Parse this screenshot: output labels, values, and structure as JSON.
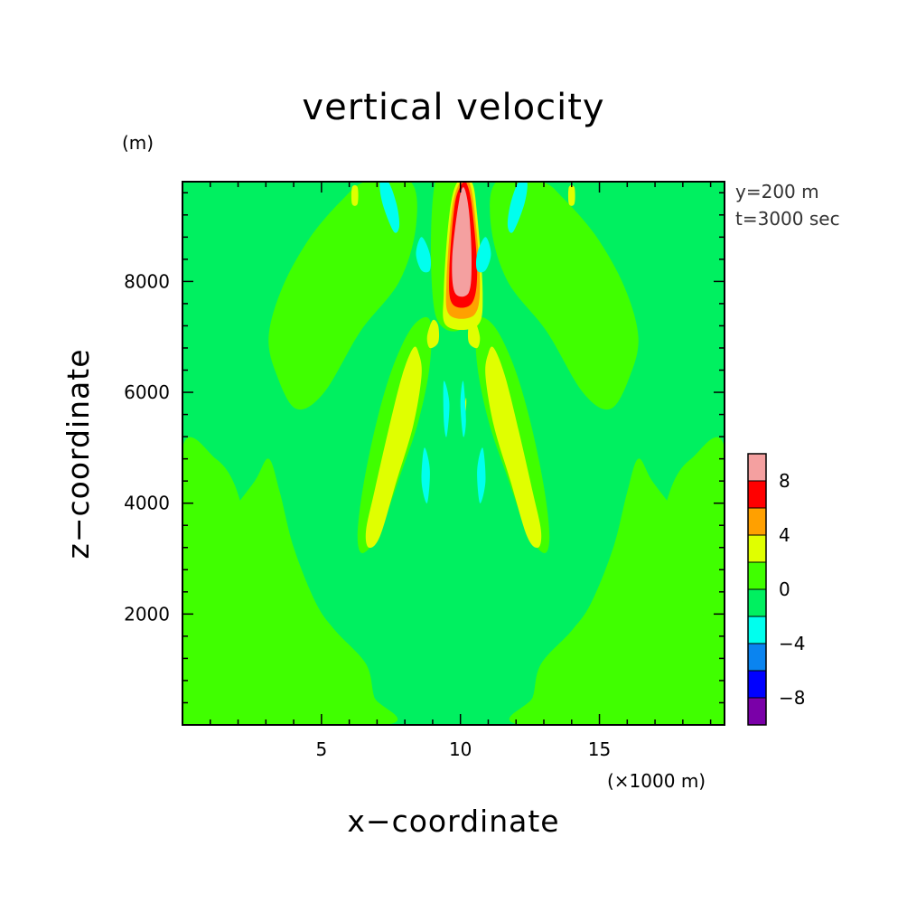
{
  "chart_data": {
    "type": "heatmap",
    "subtype": "filled-contour",
    "title": "vertical velocity",
    "xlabel": "x−coordinate",
    "ylabel": "z−coordinate",
    "x_unit": "(×1000 m)",
    "y_unit": "(m)",
    "annotations": [
      "y=200 m",
      "t=3000 sec"
    ],
    "xlim": [
      0,
      19.5
    ],
    "ylim": [
      0,
      9800
    ],
    "x_ticks": [
      5,
      10,
      15
    ],
    "x_tick_labels": [
      "5",
      "10",
      "15"
    ],
    "y_ticks": [
      2000,
      4000,
      6000,
      8000
    ],
    "y_tick_labels": [
      "2000",
      "4000",
      "6000",
      "8000"
    ],
    "background_level": 0,
    "levels": [
      {
        "range": [
          -10,
          -8
        ],
        "color": "#7a00a8"
      },
      {
        "range": [
          -8,
          -6
        ],
        "color": "#0000ff"
      },
      {
        "range": [
          -6,
          -4
        ],
        "color": "#0a84f0"
      },
      {
        "range": [
          -4,
          -2
        ],
        "color": "#00ffee"
      },
      {
        "range": [
          -2,
          0
        ],
        "color": "#00f060"
      },
      {
        "range": [
          0,
          2
        ],
        "color": "#40ff00"
      },
      {
        "range": [
          2,
          4
        ],
        "color": "#e0ff00"
      },
      {
        "range": [
          4,
          6
        ],
        "color": "#ffa000"
      },
      {
        "range": [
          6,
          8
        ],
        "color": "#ff0000"
      },
      {
        "range": [
          8,
          10
        ],
        "color": "#f4a0a0"
      }
    ],
    "colorbar_labels": [
      {
        "value": 8,
        "label": "8"
      },
      {
        "value": 4,
        "label": "4"
      },
      {
        "value": 0,
        "label": "0"
      },
      {
        "value": -4,
        "label": "−4"
      },
      {
        "value": -8,
        "label": "−8"
      }
    ],
    "features": [
      {
        "name": "left-lower-plume",
        "level": 1,
        "pts": [
          [
            0,
            0
          ],
          [
            0,
            1900
          ],
          [
            0.5,
            2600
          ],
          [
            1.6,
            3700
          ],
          [
            2.6,
            4400
          ],
          [
            3.1,
            4800
          ],
          [
            3.5,
            4200
          ],
          [
            4.0,
            3200
          ],
          [
            4.8,
            2200
          ],
          [
            5.5,
            1700
          ],
          [
            6.6,
            1100
          ],
          [
            6.9,
            500
          ],
          [
            7.3,
            0
          ]
        ]
      },
      {
        "name": "left-lower-edge-tongue",
        "level": 1,
        "pts": [
          [
            0,
            5000
          ],
          [
            0,
            1900
          ],
          [
            1.0,
            2100
          ],
          [
            2.1,
            2500
          ],
          [
            2.3,
            3400
          ],
          [
            1.9,
            4300
          ],
          [
            1.2,
            4800
          ]
        ]
      },
      {
        "name": "right-lower-plume",
        "level": 1,
        "pts": [
          [
            19.5,
            0
          ],
          [
            19.5,
            1900
          ],
          [
            19.0,
            2600
          ],
          [
            17.9,
            3700
          ],
          [
            16.9,
            4400
          ],
          [
            16.4,
            4800
          ],
          [
            16.0,
            4200
          ],
          [
            15.5,
            3200
          ],
          [
            14.7,
            2200
          ],
          [
            14.0,
            1700
          ],
          [
            12.9,
            1100
          ],
          [
            12.6,
            500
          ],
          [
            12.2,
            0
          ]
        ]
      },
      {
        "name": "right-lower-edge-tongue",
        "level": 1,
        "pts": [
          [
            19.5,
            5000
          ],
          [
            19.5,
            1900
          ],
          [
            18.5,
            2100
          ],
          [
            17.4,
            2500
          ],
          [
            17.2,
            3400
          ],
          [
            17.6,
            4300
          ],
          [
            18.3,
            4800
          ]
        ]
      },
      {
        "name": "left-upper-band",
        "level": 1,
        "pts": [
          [
            3.1,
            7000
          ],
          [
            3.6,
            7900
          ],
          [
            4.6,
            8800
          ],
          [
            5.8,
            9500
          ],
          [
            6.6,
            9800
          ],
          [
            8.2,
            9800
          ],
          [
            8.4,
            9000
          ],
          [
            7.8,
            8000
          ],
          [
            6.4,
            7100
          ],
          [
            5.1,
            6000
          ],
          [
            4.1,
            5700
          ],
          [
            3.4,
            6300
          ]
        ]
      },
      {
        "name": "right-upper-band",
        "level": 1,
        "pts": [
          [
            16.4,
            7000
          ],
          [
            15.9,
            7900
          ],
          [
            14.9,
            8800
          ],
          [
            13.7,
            9500
          ],
          [
            12.9,
            9800
          ],
          [
            11.3,
            9800
          ],
          [
            11.1,
            9000
          ],
          [
            11.7,
            8000
          ],
          [
            13.1,
            7100
          ],
          [
            14.4,
            6000
          ],
          [
            15.4,
            5700
          ],
          [
            16.1,
            6300
          ]
        ]
      },
      {
        "name": "left-diagonal-band",
        "level": 1,
        "pts": [
          [
            6.5,
            3100
          ],
          [
            7.1,
            3500
          ],
          [
            7.9,
            4600
          ],
          [
            8.5,
            5500
          ],
          [
            8.9,
            6500
          ],
          [
            8.9,
            7300
          ],
          [
            8.3,
            7200
          ],
          [
            7.6,
            6500
          ],
          [
            7.0,
            5500
          ],
          [
            6.5,
            4300
          ],
          [
            6.3,
            3400
          ]
        ]
      },
      {
        "name": "right-diagonal-band",
        "level": 1,
        "pts": [
          [
            13.0,
            3100
          ],
          [
            12.4,
            3500
          ],
          [
            11.6,
            4600
          ],
          [
            11.0,
            5500
          ],
          [
            10.6,
            6500
          ],
          [
            10.6,
            7300
          ],
          [
            11.2,
            7200
          ],
          [
            11.9,
            6500
          ],
          [
            12.5,
            5500
          ],
          [
            13.0,
            4300
          ],
          [
            13.2,
            3400
          ]
        ]
      },
      {
        "name": "lower-left-bubble",
        "level": 1,
        "pts": [
          [
            2.3,
            700
          ],
          [
            2.6,
            1000
          ],
          [
            3.6,
            1000
          ],
          [
            4.0,
            600
          ],
          [
            3.6,
            300
          ],
          [
            2.8,
            300
          ]
        ]
      },
      {
        "name": "lower-right-bubble",
        "level": 1,
        "pts": [
          [
            17.2,
            700
          ],
          [
            16.9,
            1000
          ],
          [
            15.9,
            1000
          ],
          [
            15.5,
            600
          ],
          [
            15.9,
            300
          ],
          [
            16.7,
            300
          ]
        ]
      },
      {
        "name": "central-column",
        "level": 1,
        "pts": [
          [
            9.1,
            9800
          ],
          [
            10.4,
            9800
          ],
          [
            10.4,
            7400
          ],
          [
            9.1,
            7400
          ]
        ]
      },
      {
        "name": "left-diagonal-core",
        "level": 2,
        "pts": [
          [
            6.7,
            3200
          ],
          [
            7.1,
            3400
          ],
          [
            7.7,
            4400
          ],
          [
            8.3,
            5400
          ],
          [
            8.6,
            6300
          ],
          [
            8.5,
            6700
          ],
          [
            8.3,
            6800
          ],
          [
            7.9,
            6300
          ],
          [
            7.4,
            5300
          ],
          [
            6.9,
            4200
          ],
          [
            6.6,
            3500
          ]
        ]
      },
      {
        "name": "right-diagonal-core",
        "level": 2,
        "pts": [
          [
            12.8,
            3200
          ],
          [
            12.4,
            3400
          ],
          [
            11.8,
            4400
          ],
          [
            11.2,
            5400
          ],
          [
            10.9,
            6300
          ],
          [
            11.0,
            6700
          ],
          [
            11.2,
            6800
          ],
          [
            11.6,
            6300
          ],
          [
            12.1,
            5300
          ],
          [
            12.6,
            4200
          ],
          [
            12.9,
            3500
          ]
        ]
      },
      {
        "name": "left-mid-blob",
        "level": 2,
        "pts": [
          [
            8.8,
            7000
          ],
          [
            8.9,
            6800
          ],
          [
            9.2,
            6900
          ],
          [
            9.2,
            7200
          ],
          [
            9.0,
            7300
          ]
        ]
      },
      {
        "name": "right-mid-blob",
        "level": 2,
        "pts": [
          [
            10.7,
            7000
          ],
          [
            10.6,
            6800
          ],
          [
            10.3,
            6900
          ],
          [
            10.3,
            7200
          ],
          [
            10.5,
            7300
          ]
        ]
      },
      {
        "name": "left-top-speck",
        "level": 2,
        "pts": [
          [
            6.1,
            9700
          ],
          [
            6.3,
            9700
          ],
          [
            6.3,
            9400
          ],
          [
            6.1,
            9400
          ]
        ]
      },
      {
        "name": "right-top-speck",
        "level": 2,
        "pts": [
          [
            13.9,
            9700
          ],
          [
            14.1,
            9700
          ],
          [
            14.1,
            9400
          ],
          [
            13.9,
            9400
          ]
        ]
      },
      {
        "name": "center-mid-speck",
        "level": 2,
        "pts": [
          [
            10.1,
            5400
          ],
          [
            10.2,
            5700
          ],
          [
            10.2,
            5900
          ],
          [
            10.1,
            5600
          ]
        ]
      },
      {
        "name": "central-core-yellow",
        "level": 2,
        "pts": [
          [
            9.5,
            7200
          ],
          [
            10.6,
            7200
          ],
          [
            10.8,
            7800
          ],
          [
            10.6,
            9200
          ],
          [
            10.4,
            9800
          ],
          [
            9.9,
            9800
          ],
          [
            9.6,
            9200
          ],
          [
            9.4,
            7800
          ]
        ]
      },
      {
        "name": "central-core-orange",
        "level": 3,
        "pts": [
          [
            9.6,
            7400
          ],
          [
            10.5,
            7400
          ],
          [
            10.7,
            8000
          ],
          [
            10.5,
            9300
          ],
          [
            10.3,
            9800
          ],
          [
            10.0,
            9800
          ],
          [
            9.7,
            9300
          ],
          [
            9.5,
            8000
          ]
        ]
      },
      {
        "name": "central-core-red",
        "level": 4,
        "pts": [
          [
            9.7,
            7600
          ],
          [
            10.4,
            7600
          ],
          [
            10.6,
            8200
          ],
          [
            10.4,
            9400
          ],
          [
            10.2,
            9800
          ],
          [
            10.1,
            9800
          ],
          [
            9.8,
            9400
          ],
          [
            9.6,
            8200
          ]
        ]
      },
      {
        "name": "central-core-pink",
        "level": 5,
        "pts": [
          [
            9.8,
            7800
          ],
          [
            10.3,
            7800
          ],
          [
            10.4,
            8400
          ],
          [
            10.3,
            9300
          ],
          [
            10.1,
            9700
          ],
          [
            9.9,
            9300
          ],
          [
            9.7,
            8400
          ]
        ]
      },
      {
        "name": "upper-left-cyan",
        "level": -1,
        "pts": [
          [
            7.4,
            9800
          ],
          [
            7.7,
            9400
          ],
          [
            7.8,
            9000
          ],
          [
            7.6,
            8900
          ],
          [
            7.2,
            9400
          ],
          [
            7.1,
            9800
          ]
        ]
      },
      {
        "name": "upper-right-cyan",
        "level": -1,
        "pts": [
          [
            12.1,
            9800
          ],
          [
            11.8,
            9400
          ],
          [
            11.7,
            9000
          ],
          [
            11.9,
            8900
          ],
          [
            12.3,
            9400
          ],
          [
            12.4,
            9800
          ]
        ]
      },
      {
        "name": "left-central-cyan",
        "level": -1,
        "pts": [
          [
            8.6,
            8800
          ],
          [
            8.9,
            8500
          ],
          [
            8.9,
            8200
          ],
          [
            8.6,
            8200
          ],
          [
            8.4,
            8500
          ]
        ]
      },
      {
        "name": "right-central-cyan",
        "level": -1,
        "pts": [
          [
            10.9,
            8800
          ],
          [
            10.6,
            8500
          ],
          [
            10.6,
            8200
          ],
          [
            10.9,
            8200
          ],
          [
            11.1,
            8500
          ]
        ]
      },
      {
        "name": "left-mid-cyan",
        "level": -1,
        "pts": [
          [
            9.4,
            6200
          ],
          [
            9.6,
            5800
          ],
          [
            9.5,
            5200
          ],
          [
            9.4,
            5500
          ]
        ]
      },
      {
        "name": "right-mid-cyan",
        "level": -1,
        "pts": [
          [
            10.1,
            6200
          ],
          [
            10.0,
            5800
          ],
          [
            10.1,
            5200
          ],
          [
            10.2,
            5500
          ]
        ]
      },
      {
        "name": "left-lower-cyan",
        "level": -1,
        "pts": [
          [
            8.7,
            5000
          ],
          [
            8.9,
            4600
          ],
          [
            8.8,
            4000
          ],
          [
            8.6,
            4400
          ]
        ]
      },
      {
        "name": "right-lower-cyan",
        "level": -1,
        "pts": [
          [
            10.8,
            5000
          ],
          [
            10.6,
            4600
          ],
          [
            10.7,
            4000
          ],
          [
            10.9,
            4400
          ]
        ]
      }
    ]
  }
}
